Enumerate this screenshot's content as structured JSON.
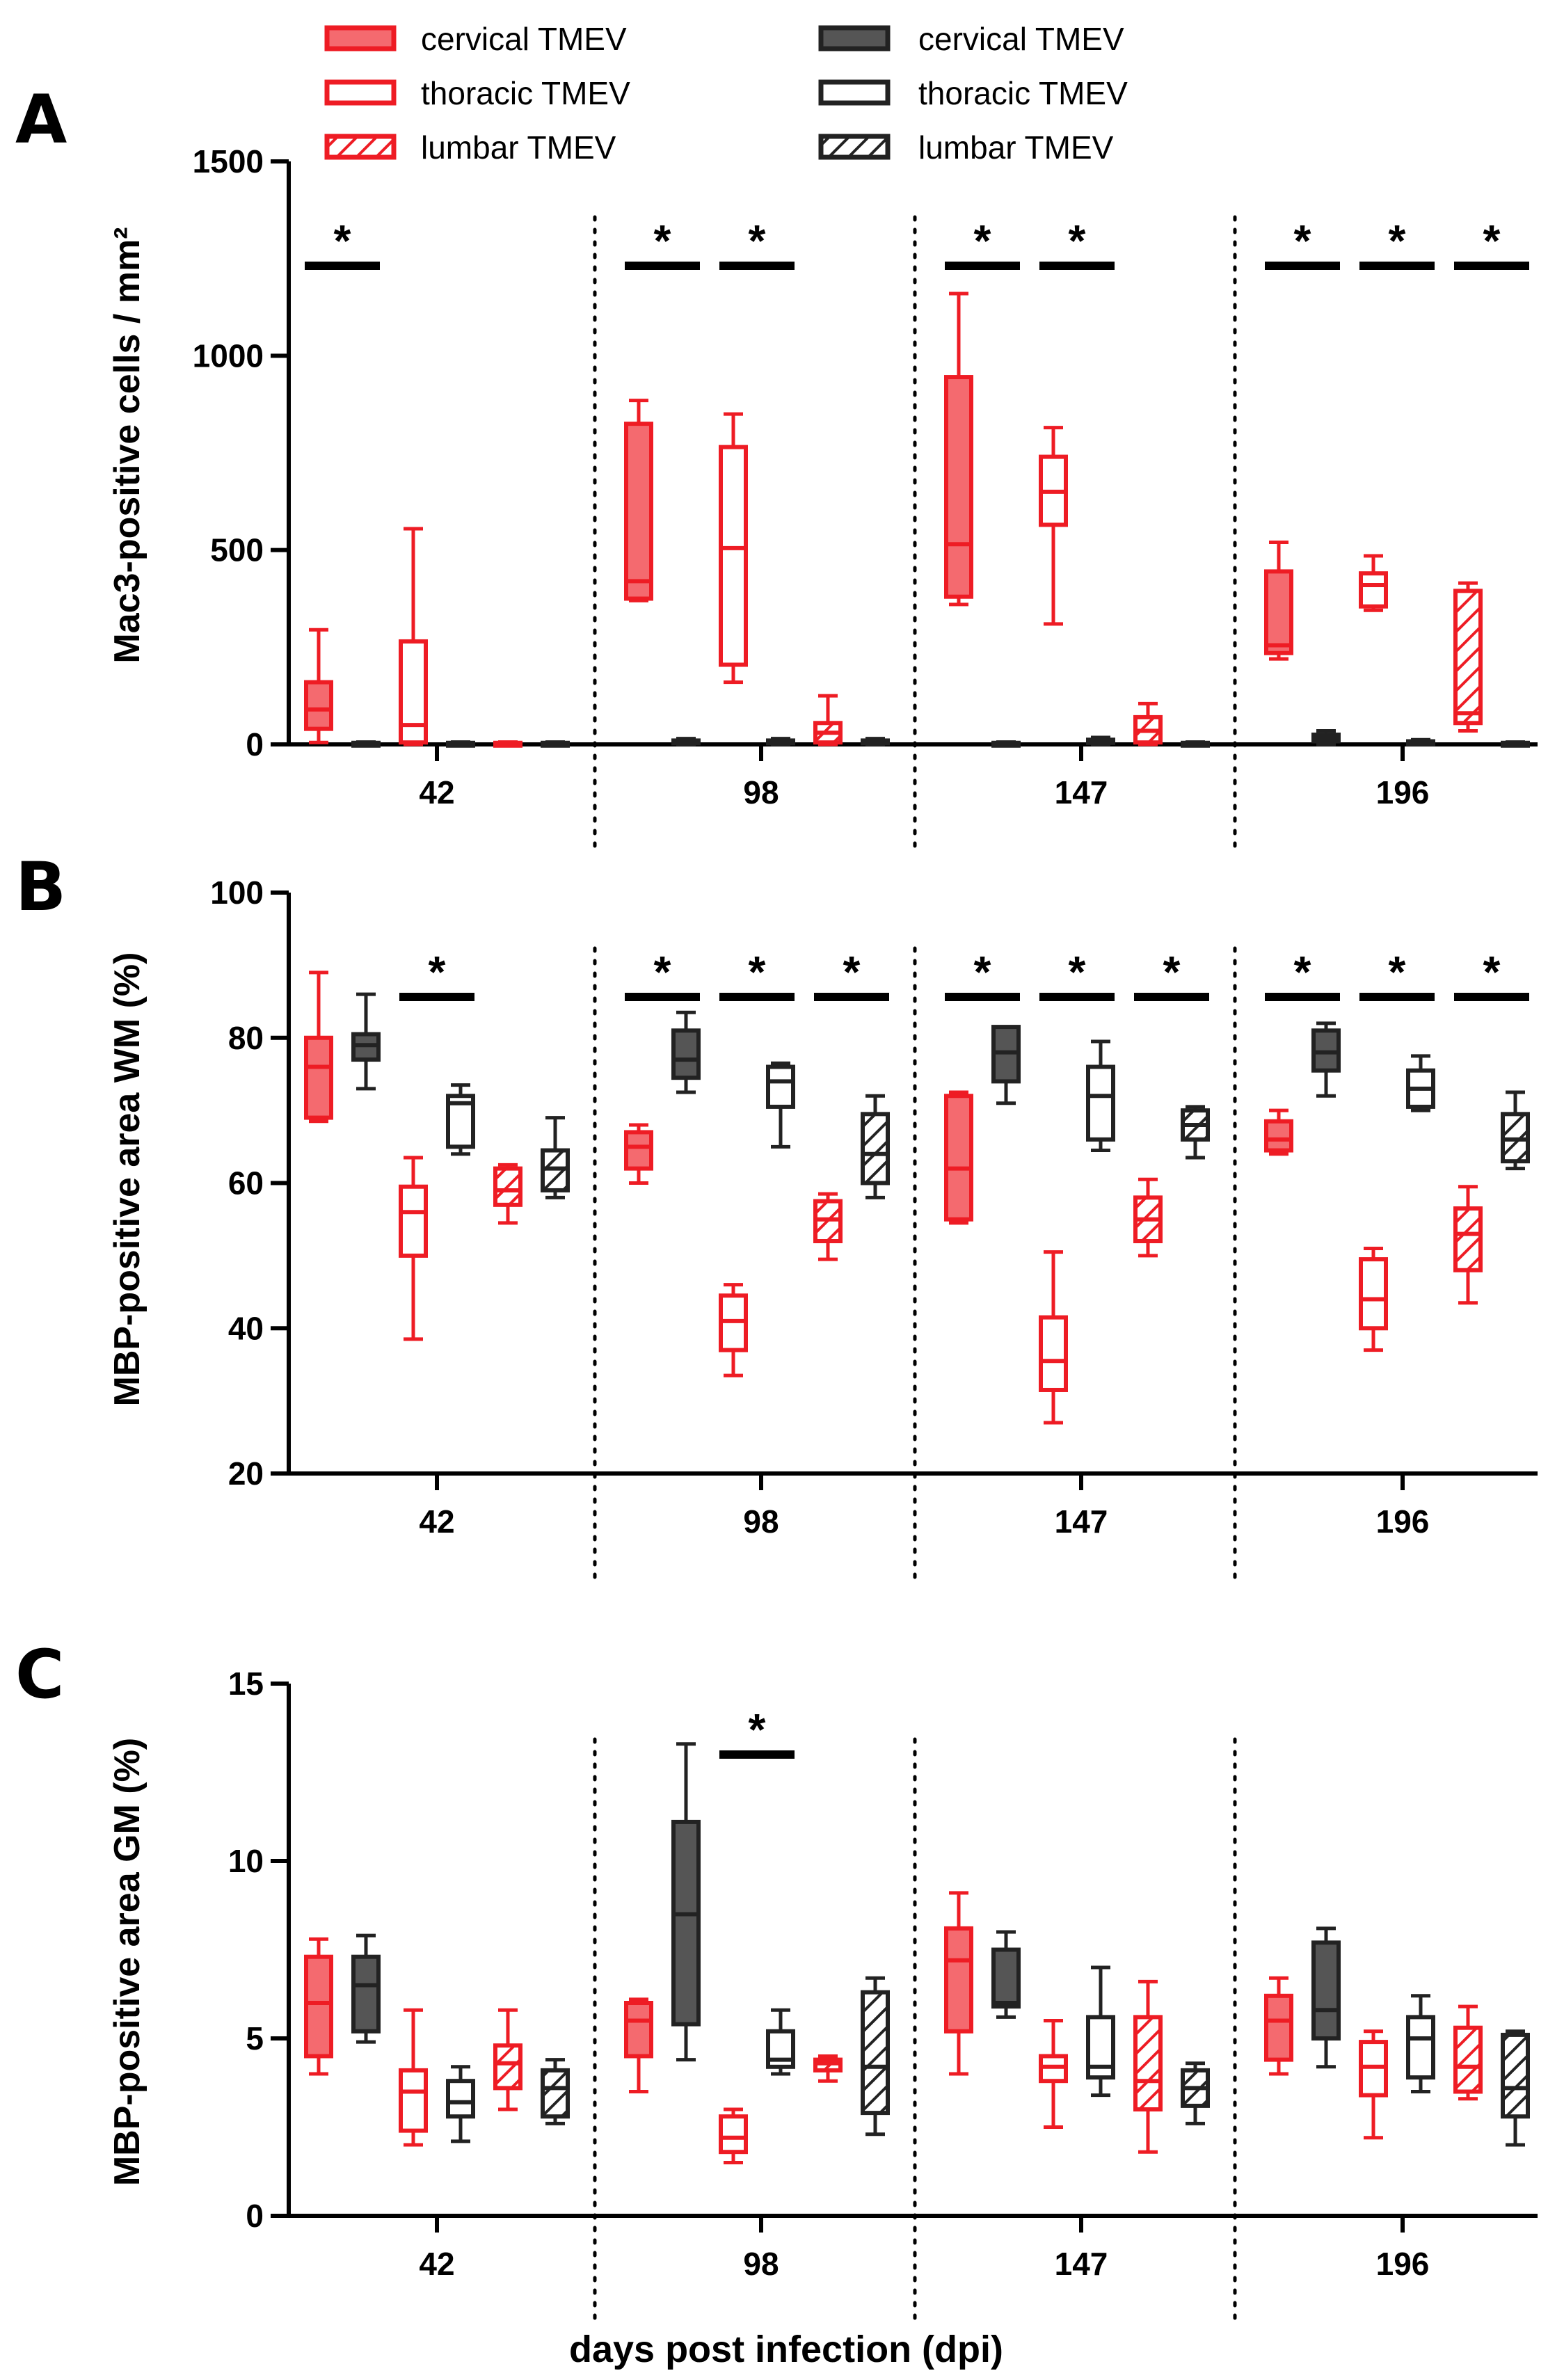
{
  "legend": {
    "entries": [
      {
        "label": "cervical TMEV",
        "color": "#ee1c24",
        "fill": "solid"
      },
      {
        "label": "thoracic TMEV",
        "color": "#ee1c24",
        "fill": "open"
      },
      {
        "label": "lumbar TMEV",
        "color": "#ee1c24",
        "fill": "hatch"
      },
      {
        "label": "cervical TMEV",
        "color": "#222222",
        "fill": "solid"
      },
      {
        "label": "thoracic TMEV",
        "color": "#222222",
        "fill": "open"
      },
      {
        "label": "lumbar TMEV",
        "color": "#222222",
        "fill": "hatch"
      }
    ]
  },
  "colors": {
    "tmev": "#ee1c24",
    "tmev_fill": "#f46a6f",
    "mock": "#222222",
    "mock_fill": "#555555"
  },
  "xaxis_label": "days post infection (dpi)",
  "chart_data": [
    {
      "panel": "A",
      "type": "box",
      "ylabel": "Mac3-positive cells / mm²",
      "ylim": [
        0,
        1500
      ],
      "yticks": [
        0,
        500,
        1000,
        1500
      ],
      "categories": [
        "42",
        "98",
        "147",
        "196"
      ],
      "series_order": [
        "cervical TMEV (red)",
        "cervical (black)",
        "thoracic TMEV (red)",
        "thoracic (black)",
        "lumbar TMEV (red)",
        "lumbar (black)"
      ],
      "boxes": [
        [
          [
            5,
            40,
            90,
            160,
            295
          ],
          [
            0,
            0,
            2,
            4,
            6
          ],
          [
            0,
            5,
            50,
            265,
            555
          ],
          [
            0,
            0,
            2,
            4,
            6
          ],
          [
            0,
            0,
            2,
            4,
            6
          ],
          [
            0,
            0,
            2,
            4,
            6
          ]
        ],
        [
          [
            370,
            375,
            420,
            825,
            885
          ],
          [
            0,
            3,
            6,
            10,
            15
          ],
          [
            160,
            205,
            505,
            765,
            850
          ],
          [
            0,
            3,
            6,
            10,
            15
          ],
          [
            0,
            5,
            30,
            55,
            125
          ],
          [
            0,
            3,
            6,
            10,
            15
          ]
        ],
        [
          [
            360,
            380,
            515,
            945,
            1160
          ],
          [
            0,
            0,
            2,
            4,
            6
          ],
          [
            310,
            565,
            650,
            740,
            815
          ],
          [
            0,
            4,
            8,
            12,
            18
          ],
          [
            0,
            5,
            35,
            70,
            105
          ],
          [
            0,
            0,
            2,
            4,
            6
          ]
        ],
        [
          [
            220,
            235,
            255,
            445,
            520
          ],
          [
            0,
            8,
            15,
            25,
            35
          ],
          [
            345,
            355,
            410,
            440,
            485
          ],
          [
            0,
            3,
            5,
            8,
            12
          ],
          [
            35,
            55,
            80,
            395,
            415
          ],
          [
            0,
            0,
            2,
            4,
            6
          ]
        ]
      ],
      "significance": [
        [
          "*",
          "",
          ""
        ],
        [
          "*",
          "*",
          ""
        ],
        [
          "*",
          "*",
          ""
        ],
        [
          "*",
          "*",
          "*"
        ]
      ]
    },
    {
      "panel": "B",
      "type": "box",
      "ylabel": "MBP-positive area WM (%)",
      "ylim": [
        20,
        100
      ],
      "yticks": [
        20,
        40,
        60,
        80,
        100
      ],
      "categories": [
        "42",
        "98",
        "147",
        "196"
      ],
      "series_order": [
        "cervical TMEV (red)",
        "cervical (black)",
        "thoracic TMEV (red)",
        "thoracic (black)",
        "lumbar TMEV (red)",
        "lumbar (black)"
      ],
      "boxes": [
        [
          [
            68.5,
            69,
            76,
            80,
            89
          ],
          [
            73,
            77,
            79,
            80.5,
            86
          ],
          [
            38.5,
            50,
            56,
            59.5,
            63.5
          ],
          [
            64,
            65,
            71,
            72,
            73.5
          ],
          [
            54.5,
            57,
            59,
            62,
            62.5
          ],
          [
            58,
            59,
            62,
            64.5,
            69
          ]
        ],
        [
          [
            60,
            62,
            65,
            67,
            68
          ],
          [
            72.5,
            74.5,
            77,
            81,
            83.5
          ],
          [
            33.5,
            37,
            41,
            44.5,
            46
          ],
          [
            65,
            70.5,
            74,
            76,
            76.5
          ],
          [
            49.5,
            52,
            55,
            57.5,
            58.5
          ],
          [
            58,
            60,
            64,
            69.5,
            72
          ]
        ],
        [
          [
            54.5,
            55,
            62,
            72,
            72.5
          ],
          [
            71,
            74,
            78,
            81.5,
            81.5
          ],
          [
            27,
            31.5,
            35.5,
            41.5,
            50.5
          ],
          [
            64.5,
            66,
            72,
            76,
            79.5
          ],
          [
            50,
            52,
            55,
            58,
            60.5
          ],
          [
            63.5,
            66,
            68,
            70,
            70.5
          ]
        ],
        [
          [
            64,
            64.5,
            66,
            68.5,
            70
          ],
          [
            72,
            75.5,
            78,
            81,
            82
          ],
          [
            37,
            40,
            44,
            49.5,
            51
          ],
          [
            70,
            70.5,
            73,
            75.5,
            77.5
          ],
          [
            43.5,
            48,
            53,
            56.5,
            59.5
          ],
          [
            62,
            63,
            66,
            69.5,
            72.5
          ]
        ]
      ],
      "significance": [
        [
          "",
          "*",
          ""
        ],
        [
          "*",
          "*",
          "*"
        ],
        [
          "*",
          "*",
          "*"
        ],
        [
          "*",
          "*",
          "*"
        ]
      ]
    },
    {
      "panel": "C",
      "type": "box",
      "ylabel": "MBP-positive area GM (%)",
      "ylim": [
        0,
        15
      ],
      "yticks": [
        0,
        5,
        10,
        15
      ],
      "categories": [
        "42",
        "98",
        "147",
        "196"
      ],
      "series_order": [
        "cervical TMEV (red)",
        "cervical (black)",
        "thoracic TMEV (red)",
        "thoracic (black)",
        "lumbar TMEV (red)",
        "lumbar (black)"
      ],
      "boxes": [
        [
          [
            4,
            4.5,
            6,
            7.3,
            7.8
          ],
          [
            4.9,
            5.2,
            6.5,
            7.3,
            7.9
          ],
          [
            2,
            2.4,
            3.5,
            4.1,
            5.8
          ],
          [
            2.1,
            2.8,
            3.2,
            3.8,
            4.2
          ],
          [
            3,
            3.6,
            4.3,
            4.8,
            5.8
          ],
          [
            2.6,
            2.8,
            3.6,
            4.1,
            4.4
          ]
        ],
        [
          [
            3.5,
            4.5,
            5.5,
            6,
            6.1
          ],
          [
            4.4,
            5.4,
            8.5,
            11.1,
            13.3
          ],
          [
            1.5,
            1.8,
            2.2,
            2.8,
            3
          ],
          [
            4,
            4.2,
            4.4,
            5.2,
            5.8
          ],
          [
            3.8,
            4.1,
            4.3,
            4.4,
            4.5
          ],
          [
            2.3,
            2.9,
            4.2,
            6.3,
            6.7
          ]
        ],
        [
          [
            4,
            5.2,
            7.2,
            8.1,
            9.1
          ],
          [
            5.6,
            5.9,
            6,
            7.5,
            8
          ],
          [
            2.5,
            3.8,
            4.2,
            4.5,
            5.5
          ],
          [
            3.4,
            3.9,
            4.2,
            5.6,
            7
          ],
          [
            1.8,
            3,
            3.8,
            5.6,
            6.6
          ],
          [
            2.6,
            3.1,
            3.6,
            4.1,
            4.3
          ]
        ],
        [
          [
            4,
            4.4,
            5.5,
            6.2,
            6.7
          ],
          [
            4.2,
            5,
            5.8,
            7.7,
            8.1
          ],
          [
            2.2,
            3.4,
            4.2,
            4.9,
            5.2
          ],
          [
            3.5,
            3.9,
            5,
            5.6,
            6.2
          ],
          [
            3.3,
            3.5,
            4.2,
            5.3,
            5.9
          ],
          [
            2,
            2.8,
            3.6,
            5.1,
            5.2
          ]
        ]
      ],
      "significance": [
        [
          "",
          "",
          ""
        ],
        [
          "",
          "*",
          ""
        ],
        [
          "",
          "",
          ""
        ],
        [
          "",
          "",
          ""
        ]
      ]
    }
  ]
}
